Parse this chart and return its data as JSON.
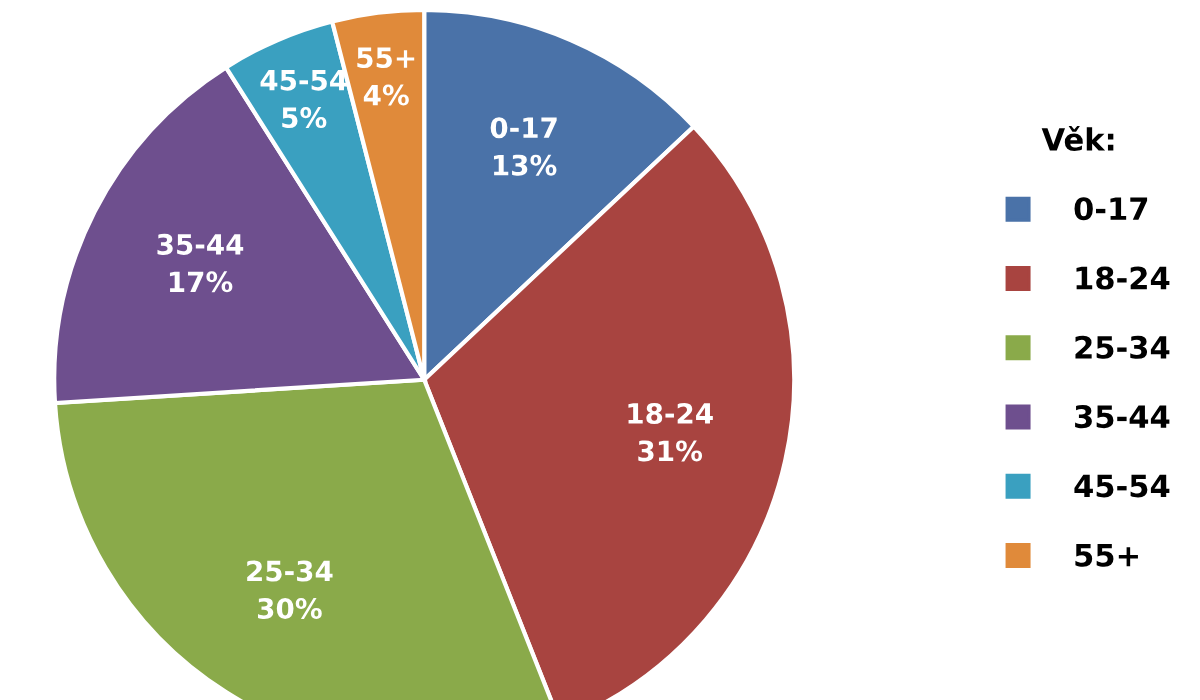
{
  "chart_data": {
    "type": "pie",
    "categories": [
      "0-17",
      "18-24",
      "25-34",
      "35-44",
      "45-54",
      "55+"
    ],
    "values": [
      13,
      31,
      30,
      17,
      5,
      4
    ],
    "value_labels": [
      "13%",
      "31%",
      "30%",
      "17%",
      "5%",
      "4%"
    ],
    "colors": [
      "#4a72a8",
      "#a84440",
      "#8aaa4a",
      "#6e4f8e",
      "#3aa0c0",
      "#e08a3a"
    ],
    "legend_title": "Věk:",
    "legend": "right"
  }
}
